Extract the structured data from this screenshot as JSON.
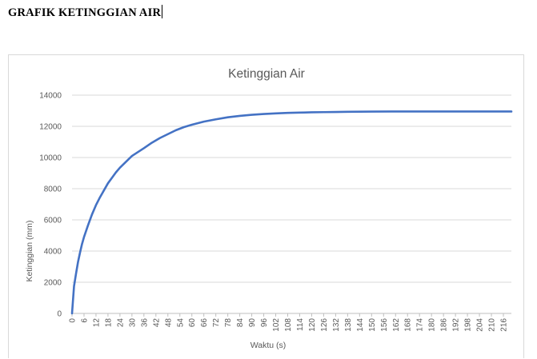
{
  "document": {
    "heading": "GRAFIK KETINGGIAN AIR"
  },
  "chart_data": {
    "type": "line",
    "title": "Ketinggian Air",
    "xlabel": "Waktu (s)",
    "ylabel": "Ketinggian (mm)",
    "ylim": [
      0,
      14000
    ],
    "yticks": [
      0,
      2000,
      4000,
      6000,
      8000,
      10000,
      12000,
      14000
    ],
    "xlim": [
      0,
      220
    ],
    "xtick_step": 6,
    "xtick_labels": [
      "0",
      "6",
      "12",
      "18",
      "24",
      "30",
      "36",
      "42",
      "48",
      "54",
      "60",
      "66",
      "72",
      "78",
      "84",
      "90",
      "96",
      "102",
      "108",
      "114",
      "120",
      "126",
      "132",
      "138",
      "144",
      "150",
      "156",
      "162",
      "168",
      "174",
      "180",
      "186",
      "192",
      "198",
      "204",
      "210",
      "216"
    ],
    "grid": true,
    "legend": "none",
    "color": "#4472c4",
    "x": [
      0,
      1,
      2,
      3,
      4,
      5,
      6,
      8,
      10,
      12,
      14,
      16,
      18,
      20,
      22,
      24,
      26,
      28,
      30,
      33,
      36,
      40,
      44,
      48,
      52,
      56,
      60,
      66,
      72,
      78,
      84,
      90,
      96,
      102,
      108,
      114,
      120,
      126,
      132,
      138,
      144,
      150,
      160,
      170,
      180,
      190,
      200,
      210,
      220
    ],
    "y": [
      0,
      1750,
      2550,
      3300,
      3900,
      4450,
      4900,
      5650,
      6350,
      6950,
      7450,
      7900,
      8350,
      8700,
      9050,
      9350,
      9600,
      9850,
      10100,
      10350,
      10600,
      10950,
      11250,
      11500,
      11750,
      11950,
      12100,
      12300,
      12450,
      12580,
      12670,
      12740,
      12790,
      12830,
      12860,
      12880,
      12900,
      12910,
      12920,
      12930,
      12940,
      12945,
      12950,
      12950,
      12950,
      12950,
      12950,
      12950,
      12950
    ]
  }
}
